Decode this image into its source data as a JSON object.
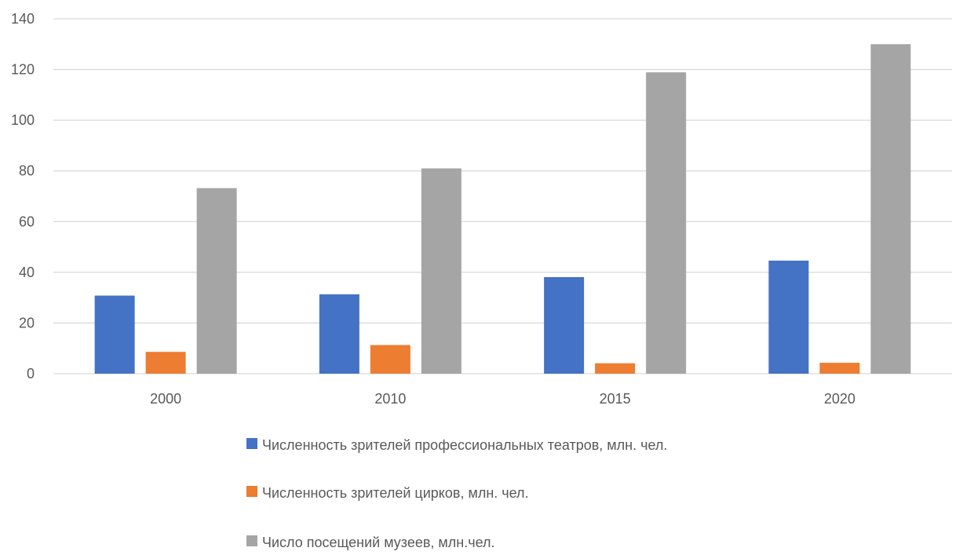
{
  "chart_data": {
    "type": "bar",
    "title": "",
    "xlabel": "",
    "ylabel": "",
    "categories": [
      "2000",
      "2010",
      "2015",
      "2020"
    ],
    "ylim": [
      0,
      140
    ],
    "yticks": [
      0,
      20,
      40,
      60,
      80,
      100,
      120,
      140
    ],
    "grid": true,
    "legend_position": "bottom",
    "series": [
      {
        "name": "Численность зрителей профессиональных театров, млн. чел.",
        "color": "#4472C4",
        "values": [
          30.8,
          31.3,
          38.1,
          44.6
        ]
      },
      {
        "name": "Численность зрителей цирков, млн. чел.",
        "color": "#ED7D31",
        "values": [
          8.6,
          11.3,
          4.1,
          4.3
        ]
      },
      {
        "name": "Число посещений музеев, млн.чел.",
        "color": "#A5A5A5",
        "values": [
          73.2,
          81.0,
          118.9,
          130.0
        ]
      }
    ]
  }
}
